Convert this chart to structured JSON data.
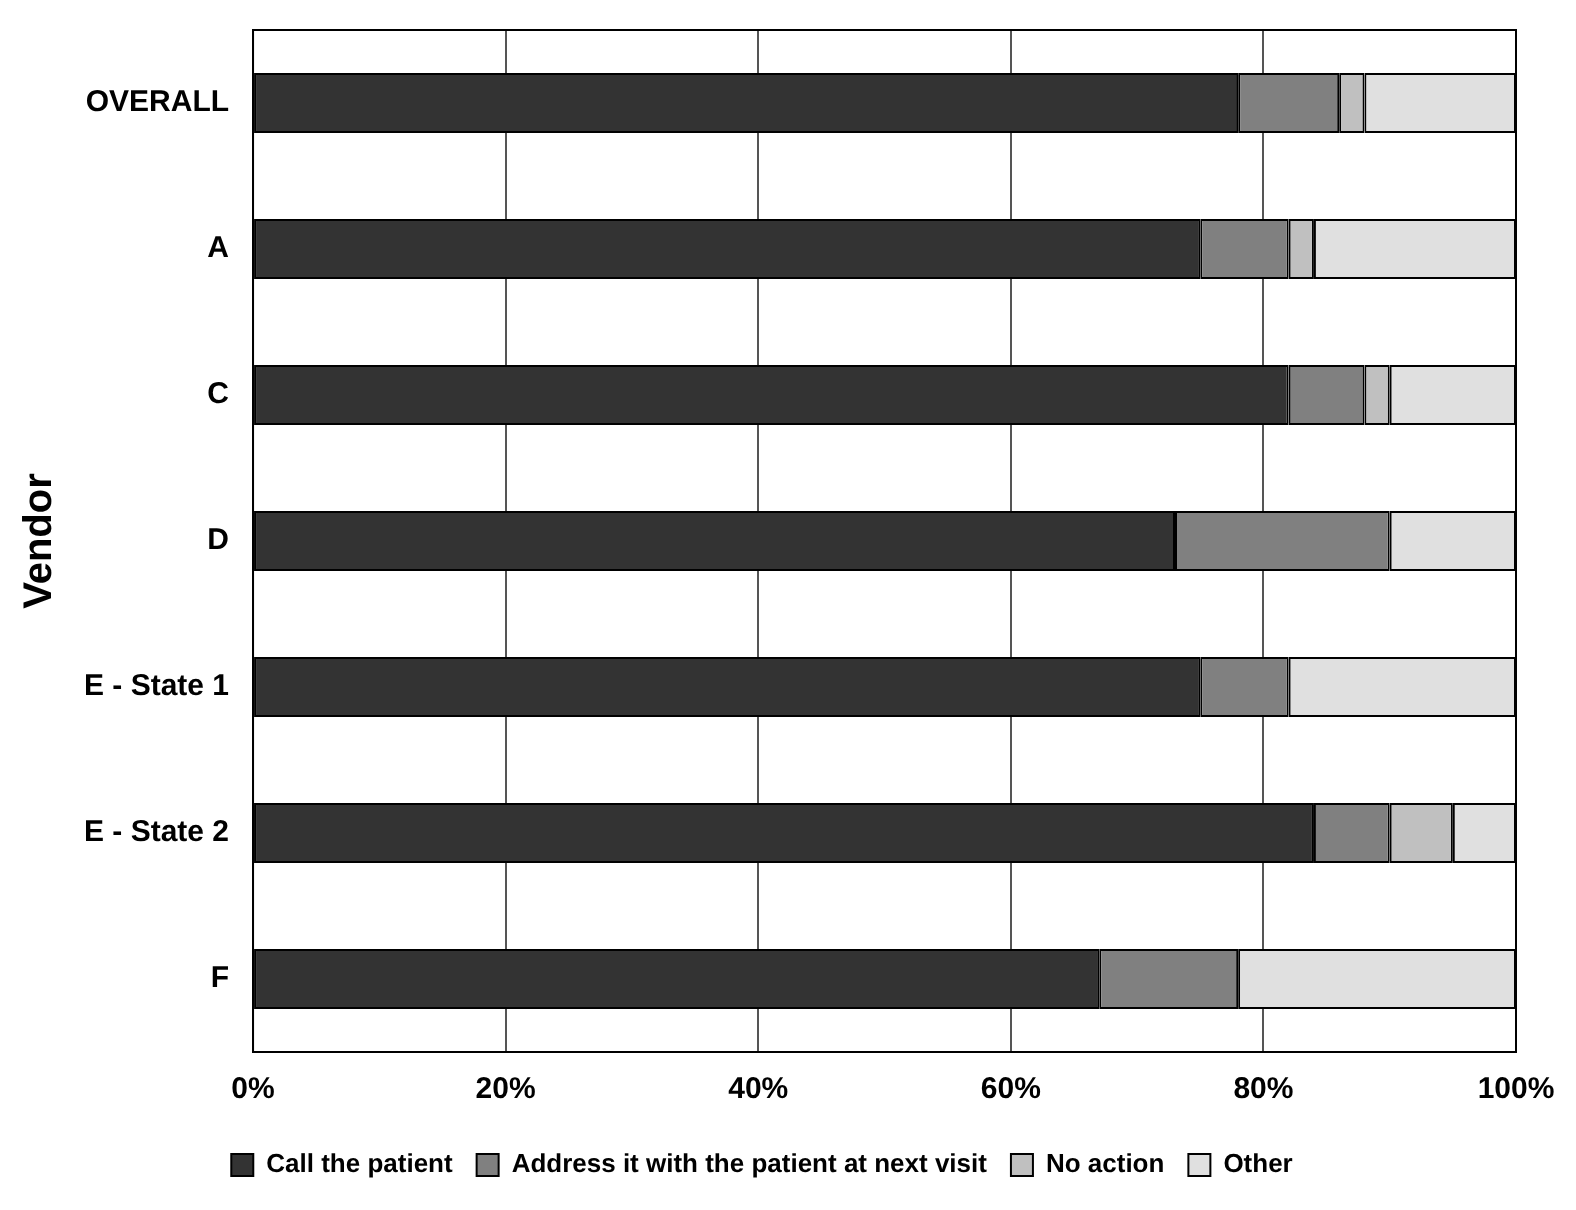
{
  "chart_data": {
    "type": "bar",
    "orientation": "horizontal",
    "stacked": true,
    "ylabel": "Vendor",
    "categories": [
      "OVERALL",
      "A",
      "C",
      "D",
      "E - State 1",
      "E - State 2",
      "F"
    ],
    "series": [
      {
        "name": "Call the patient",
        "color": "#333333",
        "values": [
          78,
          75,
          82,
          73,
          75,
          84,
          67
        ]
      },
      {
        "name": "Address it with the patient at next visit",
        "color": "#808080",
        "values": [
          8,
          7,
          6,
          17,
          7,
          6,
          11
        ]
      },
      {
        "name": "No action",
        "color": "#c0c0c0",
        "values": [
          2,
          2,
          2,
          0,
          0,
          5,
          0
        ]
      },
      {
        "name": "Other",
        "color": "#e0e0e0",
        "values": [
          12,
          16,
          10,
          10,
          18,
          5,
          22
        ]
      }
    ],
    "xlim": [
      0,
      100
    ],
    "xticks": [
      {
        "value": 0,
        "label": "0%"
      },
      {
        "value": 20,
        "label": "20%"
      },
      {
        "value": 40,
        "label": "40%"
      },
      {
        "value": 60,
        "label": "60%"
      },
      {
        "value": 80,
        "label": "80%"
      },
      {
        "value": 100,
        "label": "100%"
      }
    ],
    "grid": "x",
    "legend": "bottom"
  }
}
